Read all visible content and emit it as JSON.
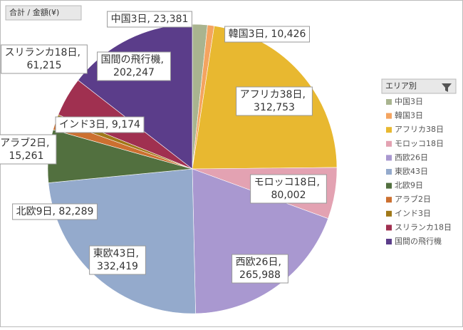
{
  "chart_data": {
    "type": "pie",
    "field_button": "合計 / 金額(¥)",
    "legend_title": "エリア別",
    "legend_position": "right",
    "label_separator": ", ",
    "categories": [
      "中国3日",
      "韓国3日",
      "アフリカ38日",
      "モロッコ18日",
      "西欧26日",
      "東欧43日",
      "北欧9日",
      "アラブ2日",
      "インド3日",
      "スリランカ18日",
      "国間の飛行機"
    ],
    "values": [
      23381,
      10426,
      312753,
      80002,
      265988,
      332419,
      82289,
      15261,
      9174,
      61215,
      202247
    ],
    "value_labels": [
      "23,381",
      "10,426",
      "312,753",
      "80,002",
      "265,988",
      "332,419",
      "82,289",
      "15,261",
      "9,174",
      "61,215",
      "202,247"
    ],
    "colors": [
      "#a9b48f",
      "#f4a460",
      "#e8b830",
      "#e3a2b2",
      "#a998d0",
      "#94aacc",
      "#52703f",
      "#cc7030",
      "#a07818",
      "#a03050",
      "#5b3d8a"
    ]
  }
}
